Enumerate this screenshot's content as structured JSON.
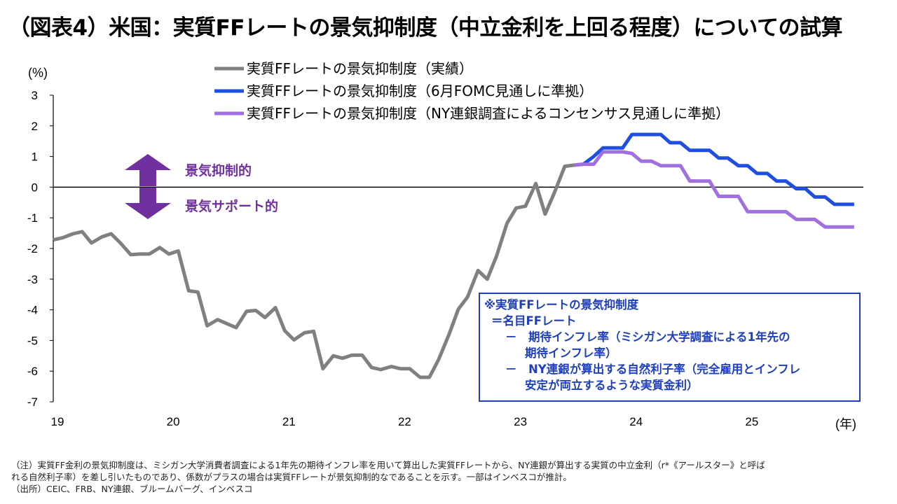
{
  "title": "（図表4）米国：実質FFレートの景気抑制度（中立金利を上回る程度）についての試算",
  "notes": [
    "（注）実質FF金利の景気抑制度は、ミシガン大学消費者調査による1年先の期待インフレ率を用いて算出した実質FFレートから、NY連銀が算出する実質の中立金利（r*《アールスター》と呼ば",
    "れる自然利子率）を差し引いたものであり、係数がプラスの場合は実質FFレートが景気抑制的なであることを示す。一部はインベスコが推計。",
    "（出所）CEIC、FRB、NY連銀、ブルームバーグ、インベスコ"
  ],
  "annotations": {
    "up_label": "景気抑制的",
    "down_label": "景気サポート的",
    "arrow_color": "#7030a0"
  },
  "textbox": {
    "lines": [
      "※実質FFレートの景気抑制度",
      "＝名目FFレート",
      "－　期待インフレ率（ミシガン大学調査による1年先の",
      "期待インフレ率）",
      "－　NY連銀が算出する自然利子率（完全雇用とインフレ",
      "安定が両立するような実質金利）"
    ]
  },
  "chart_data": {
    "type": "line",
    "ylabel": "(%)",
    "xlabel": "(年)",
    "ylim": [
      -7,
      3
    ],
    "yticks": [
      3,
      2,
      1,
      0,
      -1,
      -2,
      -3,
      -4,
      -5,
      -6,
      -7
    ],
    "xlim": [
      2019,
      2026.0
    ],
    "xticks": [
      {
        "value": 2019,
        "label": "19"
      },
      {
        "value": 2020,
        "label": "20"
      },
      {
        "value": 2021,
        "label": "21"
      },
      {
        "value": 2022,
        "label": "22"
      },
      {
        "value": 2023,
        "label": "23"
      },
      {
        "value": 2024,
        "label": "24"
      },
      {
        "value": 2025,
        "label": "25"
      }
    ],
    "legend_position": "top",
    "series": [
      {
        "name": "実質FFレートの景気抑制度（実績）",
        "color": "#808080",
        "points": [
          [
            2019.0,
            -1.72
          ],
          [
            2019.08,
            -1.65
          ],
          [
            2019.17,
            -1.52
          ],
          [
            2019.25,
            -1.45
          ],
          [
            2019.33,
            -1.82
          ],
          [
            2019.42,
            -1.62
          ],
          [
            2019.5,
            -1.52
          ],
          [
            2019.58,
            -1.82
          ],
          [
            2019.67,
            -2.2
          ],
          [
            2019.75,
            -2.18
          ],
          [
            2019.83,
            -2.18
          ],
          [
            2019.92,
            -1.97
          ],
          [
            2020.0,
            -2.18
          ],
          [
            2020.08,
            -2.08
          ],
          [
            2020.17,
            -3.38
          ],
          [
            2020.25,
            -3.42
          ],
          [
            2020.33,
            -4.52
          ],
          [
            2020.42,
            -4.32
          ],
          [
            2020.5,
            -4.45
          ],
          [
            2020.58,
            -4.58
          ],
          [
            2020.67,
            -4.05
          ],
          [
            2020.75,
            -4.02
          ],
          [
            2020.83,
            -4.25
          ],
          [
            2020.92,
            -3.93
          ],
          [
            2021.0,
            -4.68
          ],
          [
            2021.08,
            -4.98
          ],
          [
            2021.17,
            -4.75
          ],
          [
            2021.25,
            -4.7
          ],
          [
            2021.33,
            -5.92
          ],
          [
            2021.42,
            -5.5
          ],
          [
            2021.5,
            -5.58
          ],
          [
            2021.58,
            -5.48
          ],
          [
            2021.67,
            -5.48
          ],
          [
            2021.75,
            -5.88
          ],
          [
            2021.83,
            -5.95
          ],
          [
            2021.92,
            -5.85
          ],
          [
            2022.0,
            -5.92
          ],
          [
            2022.08,
            -5.92
          ],
          [
            2022.17,
            -6.2
          ],
          [
            2022.25,
            -6.2
          ],
          [
            2022.33,
            -5.62
          ],
          [
            2022.42,
            -4.8
          ],
          [
            2022.5,
            -3.98
          ],
          [
            2022.58,
            -3.58
          ],
          [
            2022.67,
            -2.72
          ],
          [
            2022.75,
            -3.0
          ],
          [
            2022.83,
            -2.25
          ],
          [
            2022.92,
            -1.18
          ],
          [
            2023.0,
            -0.68
          ],
          [
            2023.08,
            -0.62
          ],
          [
            2023.17,
            0.12
          ],
          [
            2023.25,
            -0.88
          ],
          [
            2023.33,
            -0.18
          ],
          [
            2023.42,
            0.68
          ],
          [
            2023.5,
            0.72
          ]
        ]
      },
      {
        "name": "実質FFレートの景気抑制度（6月FOMC見通しに準拠）",
        "color": "#1f4fe0",
        "points": [
          [
            2023.5,
            0.72
          ],
          [
            2023.58,
            0.75
          ],
          [
            2023.67,
            1.0
          ],
          [
            2023.75,
            1.28
          ],
          [
            2023.83,
            1.28
          ],
          [
            2023.92,
            1.28
          ],
          [
            2024.0,
            1.72
          ],
          [
            2024.08,
            1.72
          ],
          [
            2024.17,
            1.72
          ],
          [
            2024.25,
            1.72
          ],
          [
            2024.33,
            1.45
          ],
          [
            2024.42,
            1.45
          ],
          [
            2024.5,
            1.2
          ],
          [
            2024.58,
            1.2
          ],
          [
            2024.67,
            1.2
          ],
          [
            2024.75,
            0.95
          ],
          [
            2024.83,
            0.95
          ],
          [
            2024.92,
            0.7
          ],
          [
            2025.0,
            0.7
          ],
          [
            2025.08,
            0.45
          ],
          [
            2025.17,
            0.45
          ],
          [
            2025.25,
            0.2
          ],
          [
            2025.33,
            0.2
          ],
          [
            2025.42,
            -0.05
          ],
          [
            2025.5,
            -0.05
          ],
          [
            2025.58,
            -0.32
          ],
          [
            2025.67,
            -0.32
          ],
          [
            2025.75,
            -0.56
          ],
          [
            2025.83,
            -0.56
          ],
          [
            2025.92,
            -0.56
          ]
        ]
      },
      {
        "name": "実質FFレートの景気抑制度（NY連銀調査によるコンセンサス見通しに準拠）",
        "color": "#a070e0",
        "points": [
          [
            2023.5,
            0.72
          ],
          [
            2023.58,
            0.75
          ],
          [
            2023.67,
            0.75
          ],
          [
            2023.75,
            1.15
          ],
          [
            2023.83,
            1.15
          ],
          [
            2023.92,
            1.15
          ],
          [
            2024.0,
            1.1
          ],
          [
            2024.08,
            0.85
          ],
          [
            2024.17,
            0.85
          ],
          [
            2024.25,
            0.7
          ],
          [
            2024.33,
            0.7
          ],
          [
            2024.42,
            0.7
          ],
          [
            2024.5,
            0.2
          ],
          [
            2024.58,
            0.2
          ],
          [
            2024.67,
            0.2
          ],
          [
            2024.75,
            -0.3
          ],
          [
            2024.83,
            -0.3
          ],
          [
            2024.92,
            -0.3
          ],
          [
            2025.0,
            -0.8
          ],
          [
            2025.08,
            -0.8
          ],
          [
            2025.17,
            -0.8
          ],
          [
            2025.25,
            -0.8
          ],
          [
            2025.33,
            -0.8
          ],
          [
            2025.42,
            -1.05
          ],
          [
            2025.5,
            -1.05
          ],
          [
            2025.58,
            -1.05
          ],
          [
            2025.67,
            -1.3
          ],
          [
            2025.75,
            -1.3
          ],
          [
            2025.83,
            -1.3
          ],
          [
            2025.92,
            -1.3
          ]
        ]
      }
    ]
  }
}
